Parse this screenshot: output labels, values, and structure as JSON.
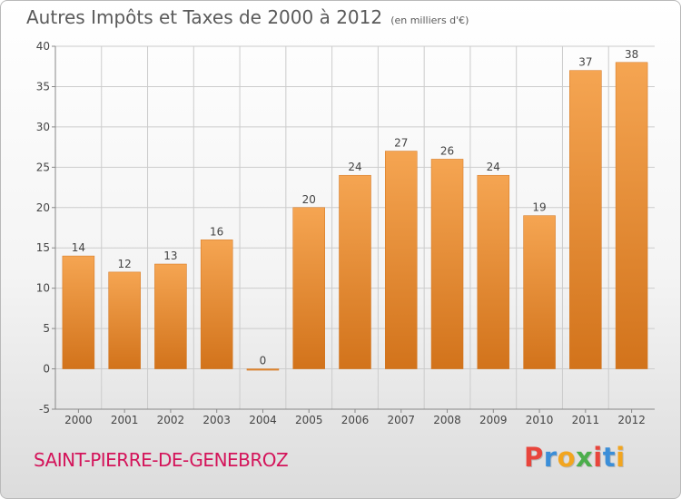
{
  "title": "Autres Impôts et Taxes de 2000 à 2012",
  "title_unit": "(en milliers d'€)",
  "commune": "SAINT-PIERRE-DE-GENEBROZ",
  "logo": "Proxiti",
  "logo_colors": [
    "#e8453c",
    "#3b8ed8",
    "#f2a51f",
    "#4cae4c",
    "#e8453c",
    "#3b8ed8",
    "#f2a51f"
  ],
  "colors": {
    "bar_light": "#f5a552",
    "bar_dark": "#d2731b",
    "commune": "#d4145a",
    "grid": "#cccccc",
    "axis": "#888888",
    "text": "#444444"
  },
  "chart_data": {
    "type": "bar",
    "categories": [
      "2000",
      "2001",
      "2002",
      "2003",
      "2004",
      "2005",
      "2006",
      "2007",
      "2008",
      "2009",
      "2010",
      "2011",
      "2012"
    ],
    "values": [
      14,
      12,
      13,
      16,
      0,
      20,
      24,
      27,
      26,
      24,
      19,
      37,
      38
    ],
    "ylim": [
      -5,
      40
    ],
    "yticks": [
      -5,
      0,
      5,
      10,
      15,
      20,
      25,
      30,
      35,
      40
    ],
    "grid": true,
    "legend": "none"
  }
}
